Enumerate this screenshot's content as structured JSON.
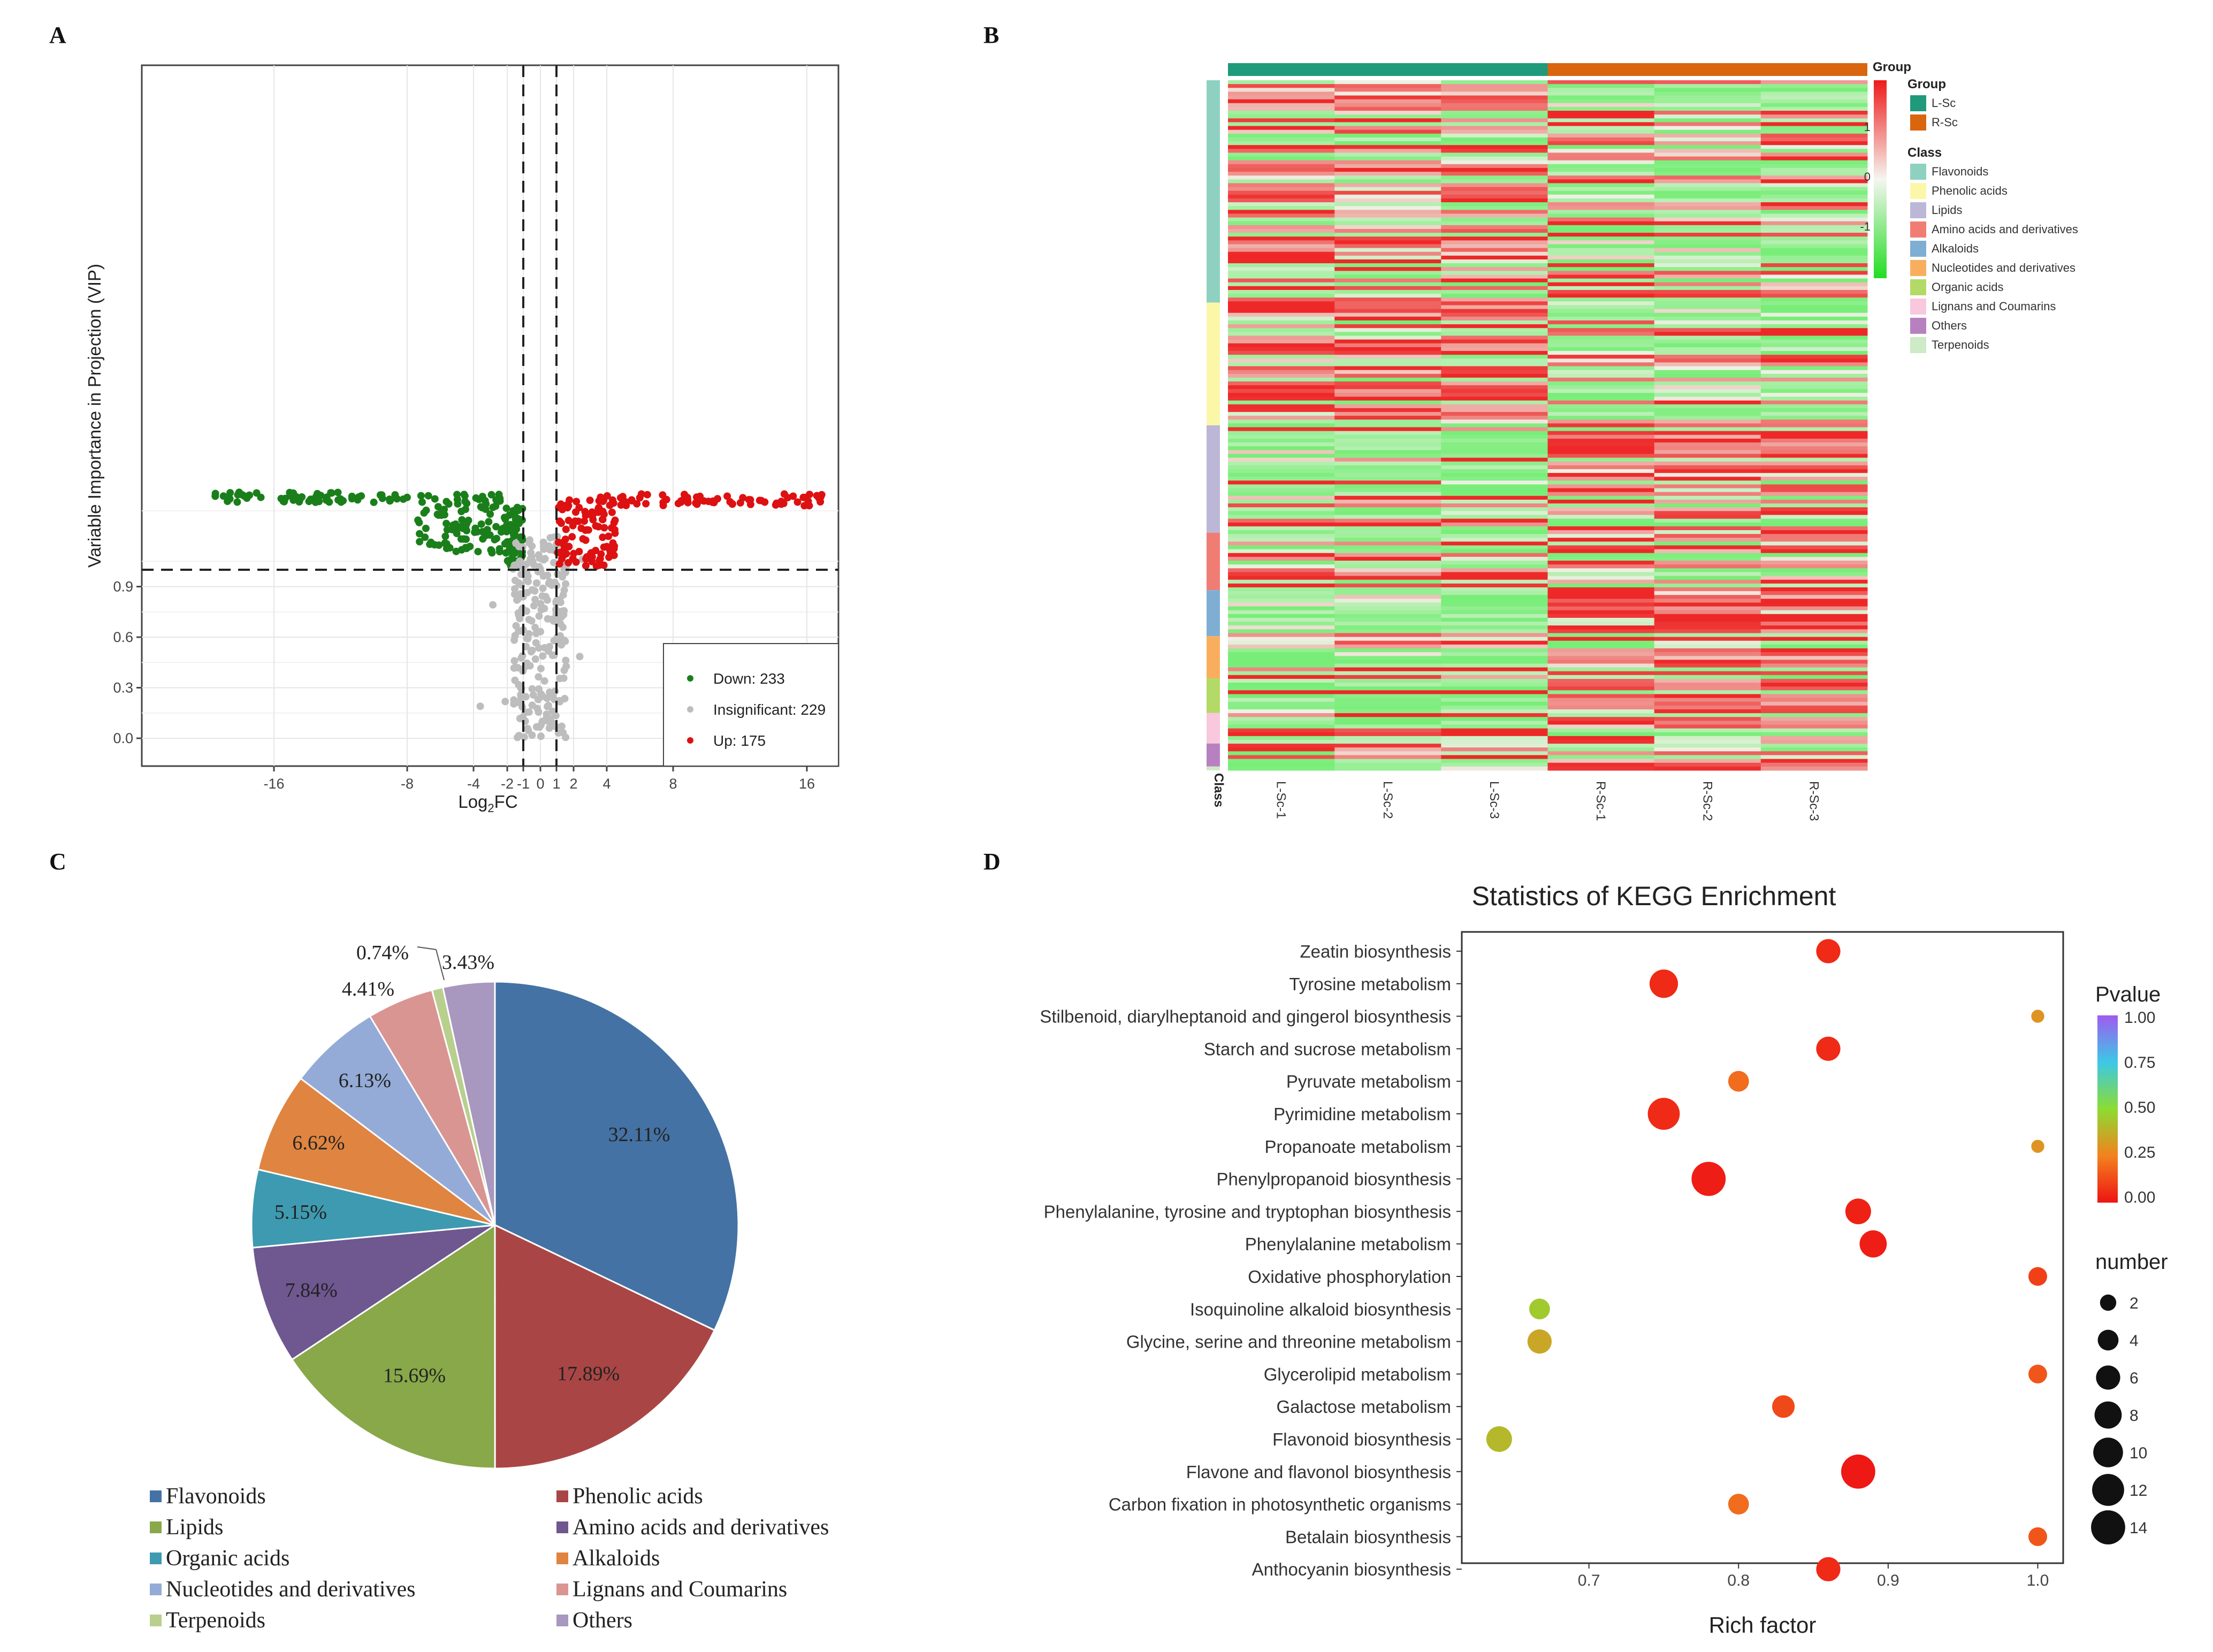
{
  "panels": {
    "a": "A",
    "b": "B",
    "c": "C",
    "d": "D"
  },
  "volcano": {
    "type": "scatter",
    "xlabel_main": "Log",
    "xlabel_sub": "2",
    "xlabel_tail": "FC",
    "ylabel": "Variable Importance in Projection (VIP)",
    "x_ticks": [
      "-16",
      "-8",
      "-4",
      "-2",
      "-1",
      "0",
      "1",
      "2",
      "4",
      "8",
      "16"
    ],
    "y_ticks": [
      "0.0",
      "0.3",
      "0.6",
      "0.9"
    ],
    "legend": [
      {
        "label": "Down: 233",
        "color": "#1a7f1a"
      },
      {
        "label": "Insignificant: 229",
        "color": "#bdbdbd"
      },
      {
        "label": "Up: 175",
        "color": "#dd1111"
      }
    ],
    "vip_threshold": 1.0,
    "fc_threshold": 1.0
  },
  "heatmap": {
    "type": "heatmap",
    "samples": [
      "L-Sc-1",
      "L-Sc-2",
      "L-Sc-3",
      "R-Sc-1",
      "R-Sc-2",
      "R-Sc-3"
    ],
    "class_axis_label": "Class",
    "group_title": "Group",
    "groups": [
      {
        "name": "L-Sc",
        "color": "#1f9a7a"
      },
      {
        "name": "R-Sc",
        "color": "#d9650f"
      }
    ],
    "scale_ticks": [
      "1",
      "0",
      "-1"
    ],
    "class_title": "Class",
    "classes": [
      {
        "name": "Flavonoids",
        "color": "#8fd1c1"
      },
      {
        "name": "Phenolic acids",
        "color": "#fbf7a8"
      },
      {
        "name": "Lipids",
        "color": "#bcb7d6"
      },
      {
        "name": "Amino acids and derivatives",
        "color": "#f07d74"
      },
      {
        "name": "Alkaloids",
        "color": "#7faed3"
      },
      {
        "name": "Nucleotides and derivatives",
        "color": "#f9ae5e"
      },
      {
        "name": "Organic acids",
        "color": "#b3da67"
      },
      {
        "name": "Lignans and Coumarins",
        "color": "#f8c8dc"
      },
      {
        "name": "Others",
        "color": "#b781c0"
      },
      {
        "name": "Terpenoids",
        "color": "#cdebc6"
      }
    ]
  },
  "pie": {
    "type": "pie",
    "slices": [
      {
        "name": "Flavonoids",
        "value": 32.11,
        "label": "32.11%",
        "color": "#4472a4"
      },
      {
        "name": "Phenolic acids",
        "value": 17.89,
        "label": "17.89%",
        "color": "#a94645"
      },
      {
        "name": "Lipids",
        "value": 15.69,
        "label": "15.69%",
        "color": "#88a84a"
      },
      {
        "name": "Amino acids and derivatives",
        "value": 7.84,
        "label": "7.84%",
        "color": "#6f5790"
      },
      {
        "name": "Organic acids",
        "value": 5.15,
        "label": "5.15%",
        "color": "#3e9ab0"
      },
      {
        "name": "Alkaloids",
        "value": 6.62,
        "label": "6.62%",
        "color": "#df8541"
      },
      {
        "name": "Nucleotides and derivatives",
        "value": 6.13,
        "label": "6.13%",
        "color": "#94abd7"
      },
      {
        "name": "Lignans and Coumarins",
        "value": 4.41,
        "label": "4.41%",
        "color": "#d99592"
      },
      {
        "name": "Terpenoids",
        "value": 0.74,
        "label": "0.74%",
        "color": "#b8cf8e"
      },
      {
        "name": "Others",
        "value": 3.43,
        "label": "3.43%",
        "color": "#a897be"
      }
    ],
    "legend_order": [
      "Flavonoids",
      "Phenolic acids",
      "Lipids",
      "Amino acids and derivatives",
      "Organic acids",
      "Alkaloids",
      "Nucleotides and derivatives",
      "Lignans and Coumarins",
      "Terpenoids",
      "Others"
    ]
  },
  "kegg": {
    "type": "scatter",
    "title": "Statistics of KEGG Enrichment",
    "xlabel": "Rich factor",
    "x_ticks": [
      "0.7",
      "0.8",
      "0.9",
      "1.0"
    ],
    "xlim": [
      0.615,
      1.017
    ],
    "pvalue_title": "Pvalue",
    "pvalue_ticks": [
      "1.00",
      "0.75",
      "0.50",
      "0.25",
      "0.00"
    ],
    "number_title": "number",
    "number_ticks": [
      "2",
      "4",
      "6",
      "8",
      "10",
      "12",
      "14"
    ],
    "pathways": [
      {
        "name": "Zeatin biosynthesis",
        "rich": 0.86,
        "number": 6,
        "pvalue": 0.05
      },
      {
        "name": "Tyrosine metabolism",
        "rich": 0.75,
        "number": 9,
        "pvalue": 0.05
      },
      {
        "name": "Stilbenoid, diarylheptanoid and gingerol biosynthesis",
        "rich": 1.0,
        "number": 1,
        "pvalue": 0.3
      },
      {
        "name": "Starch and sucrose metabolism",
        "rich": 0.86,
        "number": 6,
        "pvalue": 0.05
      },
      {
        "name": "Pyruvate metabolism",
        "rich": 0.8,
        "number": 4,
        "pvalue": 0.2
      },
      {
        "name": "Pyrimidine metabolism",
        "rich": 0.75,
        "number": 12,
        "pvalue": 0.05
      },
      {
        "name": "Propanoate metabolism",
        "rich": 1.0,
        "number": 1,
        "pvalue": 0.3
      },
      {
        "name": "Phenylpropanoid biosynthesis",
        "rich": 0.78,
        "number": 14,
        "pvalue": 0.02
      },
      {
        "name": "Phenylalanine, tyrosine and tryptophan biosynthesis",
        "rich": 0.88,
        "number": 7,
        "pvalue": 0.03
      },
      {
        "name": "Phenylalanine metabolism",
        "rich": 0.89,
        "number": 8,
        "pvalue": 0.02
      },
      {
        "name": "Oxidative phosphorylation",
        "rich": 1.0,
        "number": 3,
        "pvalue": 0.1
      },
      {
        "name": "Isoquinoline alkaloid biosynthesis",
        "rich": 0.667,
        "number": 4,
        "pvalue": 0.45
      },
      {
        "name": "Glycine, serine and threonine metabolism",
        "rich": 0.667,
        "number": 6,
        "pvalue": 0.35
      },
      {
        "name": "Glycerolipid metabolism",
        "rich": 1.0,
        "number": 3,
        "pvalue": 0.15
      },
      {
        "name": "Galactose metabolism",
        "rich": 0.83,
        "number": 5,
        "pvalue": 0.12
      },
      {
        "name": "Flavonoid biosynthesis",
        "rich": 0.64,
        "number": 7,
        "pvalue": 0.4
      },
      {
        "name": "Flavone and flavonol biosynthesis",
        "rich": 0.88,
        "number": 14,
        "pvalue": 0.01
      },
      {
        "name": "Carbon fixation in photosynthetic organisms",
        "rich": 0.8,
        "number": 4,
        "pvalue": 0.2
      },
      {
        "name": "Betalain biosynthesis",
        "rich": 1.0,
        "number": 3,
        "pvalue": 0.15
      },
      {
        "name": "Anthocyanin biosynthesis",
        "rich": 0.86,
        "number": 6,
        "pvalue": 0.05
      }
    ]
  }
}
